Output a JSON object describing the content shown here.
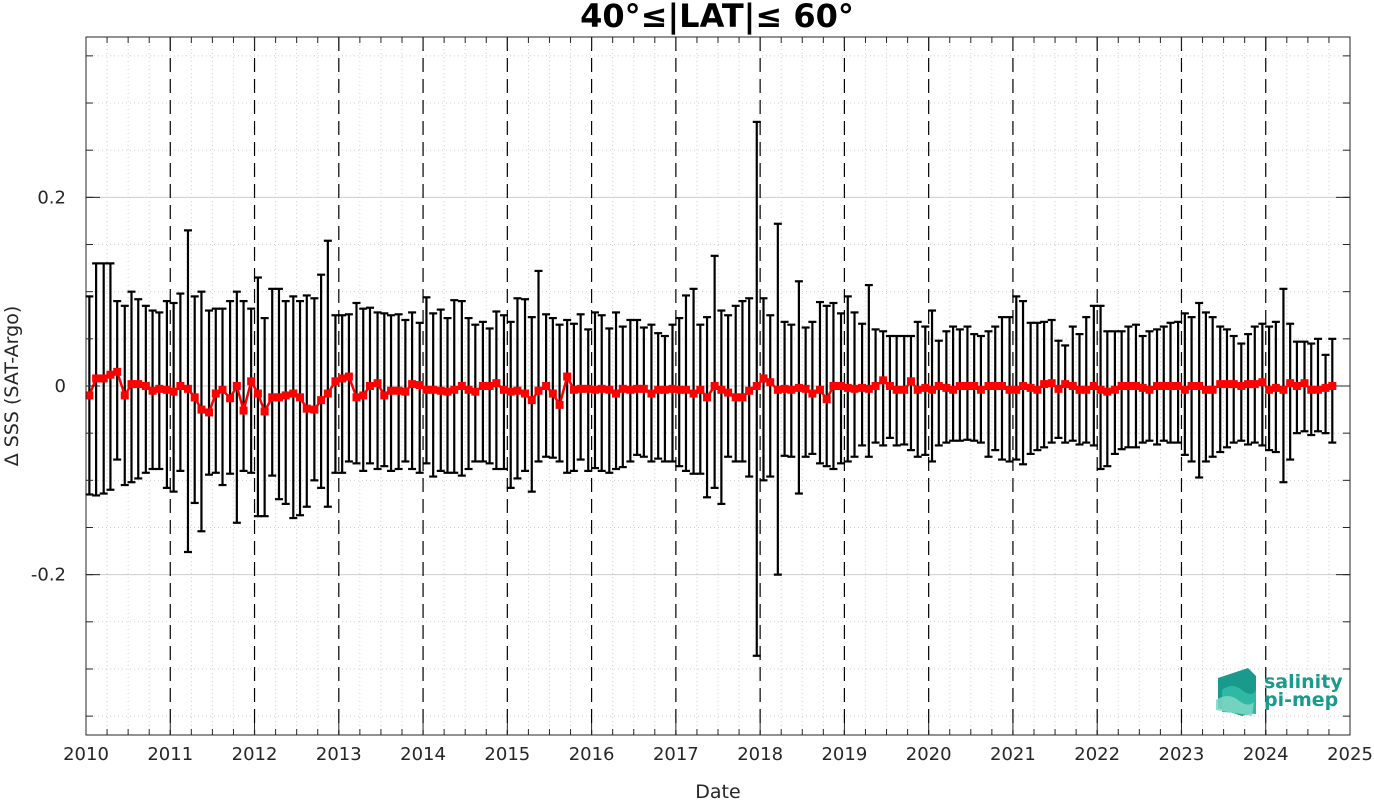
{
  "chart_data": {
    "type": "line",
    "title": "40°≤|LAT|≤ 60°",
    "xlabel": "Date",
    "ylabel": "Δ SSS (SAT-Argo)",
    "xlim": [
      2010,
      2025
    ],
    "ylim": [
      -0.37,
      0.37
    ],
    "x_ticks": [
      "2010",
      "2011",
      "2012",
      "2013",
      "2014",
      "2015",
      "2016",
      "2017",
      "2018",
      "2019",
      "2020",
      "2021",
      "2022",
      "2023",
      "2024",
      "2025"
    ],
    "y_ticks": [
      {
        "value": 0.2,
        "label": "0.2"
      },
      {
        "value": 0,
        "label": "0"
      },
      {
        "value": -0.2,
        "label": "-0.2"
      }
    ],
    "grid": "minor dotted",
    "year_boundary_lines": "dashed",
    "colors": {
      "mean": "#ff0000",
      "error_bars": "#000000",
      "logo": "#1a9a8c"
    },
    "series": [
      {
        "style": "red squares with line (monthly mean) and black error bars (± std)",
        "x": [
          2010.04,
          2010.12,
          2010.21,
          2010.29,
          2010.37,
          2010.46,
          2010.54,
          2010.62,
          2010.71,
          2010.79,
          2010.87,
          2010.96,
          2011.04,
          2011.12,
          2011.21,
          2011.29,
          2011.37,
          2011.46,
          2011.54,
          2011.62,
          2011.71,
          2011.79,
          2011.87,
          2011.96,
          2012.04,
          2012.12,
          2012.21,
          2012.29,
          2012.37,
          2012.46,
          2012.54,
          2012.62,
          2012.71,
          2012.79,
          2012.87,
          2012.96,
          2013.04,
          2013.12,
          2013.21,
          2013.29,
          2013.37,
          2013.46,
          2013.54,
          2013.62,
          2013.71,
          2013.79,
          2013.87,
          2013.96,
          2014.04,
          2014.12,
          2014.21,
          2014.29,
          2014.37,
          2014.46,
          2014.54,
          2014.62,
          2014.71,
          2014.79,
          2014.87,
          2014.96,
          2015.04,
          2015.12,
          2015.21,
          2015.29,
          2015.37,
          2015.46,
          2015.54,
          2015.62,
          2015.71,
          2015.79,
          2015.87,
          2015.96,
          2016.04,
          2016.12,
          2016.21,
          2016.29,
          2016.37,
          2016.46,
          2016.54,
          2016.62,
          2016.71,
          2016.79,
          2016.87,
          2016.96,
          2017.04,
          2017.12,
          2017.21,
          2017.29,
          2017.37,
          2017.46,
          2017.54,
          2017.62,
          2017.71,
          2017.79,
          2017.87,
          2017.96,
          2018.04,
          2018.12,
          2018.21,
          2018.29,
          2018.37,
          2018.46,
          2018.54,
          2018.62,
          2018.71,
          2018.79,
          2018.87,
          2018.96,
          2019.04,
          2019.12,
          2019.21,
          2019.29,
          2019.37,
          2019.46,
          2019.54,
          2019.62,
          2019.71,
          2019.79,
          2019.87,
          2019.96,
          2020.04,
          2020.12,
          2020.21,
          2020.29,
          2020.37,
          2020.46,
          2020.54,
          2020.62,
          2020.71,
          2020.79,
          2020.87,
          2020.96,
          2021.04,
          2021.12,
          2021.21,
          2021.29,
          2021.37,
          2021.46,
          2021.54,
          2021.62,
          2021.71,
          2021.79,
          2021.87,
          2021.96,
          2022.04,
          2022.12,
          2022.21,
          2022.29,
          2022.37,
          2022.46,
          2022.54,
          2022.62,
          2022.71,
          2022.79,
          2022.87,
          2022.96,
          2023.04,
          2023.12,
          2023.21,
          2023.29,
          2023.37,
          2023.46,
          2023.54,
          2023.62,
          2023.71,
          2023.79,
          2023.87,
          2023.96,
          2024.04,
          2024.12,
          2024.21,
          2024.29,
          2024.37,
          2024.46,
          2024.54,
          2024.62,
          2024.71,
          2024.79
        ],
        "mean": [
          -0.01,
          0.008,
          0.008,
          0.012,
          0.015,
          -0.01,
          0.002,
          0.002,
          0.0,
          -0.005,
          -0.003,
          -0.004,
          -0.006,
          0.0,
          -0.003,
          -0.012,
          -0.025,
          -0.028,
          -0.008,
          -0.004,
          -0.013,
          0.0,
          -0.026,
          0.005,
          -0.008,
          -0.027,
          -0.012,
          -0.012,
          -0.01,
          -0.008,
          -0.012,
          -0.024,
          -0.025,
          -0.015,
          -0.008,
          0.005,
          0.008,
          0.01,
          -0.012,
          -0.01,
          0.0,
          0.003,
          -0.01,
          -0.005,
          -0.005,
          -0.006,
          0.002,
          0.001,
          -0.004,
          -0.004,
          -0.005,
          -0.006,
          -0.004,
          0.0,
          -0.004,
          -0.006,
          0.0,
          0.0,
          0.003,
          -0.004,
          -0.006,
          -0.005,
          -0.008,
          -0.015,
          -0.005,
          0.0,
          -0.008,
          -0.02,
          0.01,
          -0.004,
          -0.003,
          -0.003,
          -0.004,
          -0.003,
          -0.004,
          -0.008,
          -0.003,
          -0.004,
          -0.003,
          -0.003,
          -0.008,
          -0.004,
          -0.004,
          -0.003,
          -0.004,
          -0.004,
          -0.008,
          -0.004,
          -0.012,
          0.0,
          -0.004,
          -0.007,
          -0.012,
          -0.012,
          -0.005,
          0.0,
          0.008,
          0.004,
          -0.004,
          -0.003,
          -0.004,
          -0.002,
          -0.003,
          -0.008,
          -0.004,
          -0.014,
          0.0,
          0.0,
          -0.002,
          -0.003,
          -0.002,
          -0.003,
          0.0,
          0.006,
          0.0,
          -0.004,
          -0.004,
          0.005,
          -0.004,
          -0.002,
          -0.004,
          0.0,
          -0.002,
          -0.004,
          0.0,
          0.0,
          0.0,
          -0.004,
          0.0,
          0.0,
          0.0,
          -0.004,
          -0.004,
          0.0,
          -0.002,
          -0.004,
          0.002,
          0.003,
          -0.003,
          0.002,
          0.0,
          -0.004,
          -0.004,
          0.0,
          -0.004,
          -0.006,
          -0.004,
          0.0,
          0.0,
          0.0,
          -0.002,
          -0.004,
          0.0,
          0.0,
          0.0,
          0.0,
          -0.004,
          0.0,
          0.0,
          -0.004,
          -0.004,
          0.002,
          0.002,
          0.002,
          0.0,
          0.002,
          0.002,
          0.004,
          -0.004,
          -0.002,
          -0.004,
          0.003,
          0.0,
          0.003,
          -0.004,
          -0.004,
          -0.002,
          0.0
        ],
        "upper": [
          0.095,
          0.13,
          0.13,
          0.13,
          0.09,
          0.085,
          0.1,
          0.092,
          0.085,
          0.08,
          0.078,
          0.09,
          0.088,
          0.098,
          0.165,
          0.095,
          0.1,
          0.08,
          0.082,
          0.082,
          0.09,
          0.1,
          0.09,
          0.082,
          0.115,
          0.072,
          0.103,
          0.103,
          0.09,
          0.095,
          0.09,
          0.096,
          0.093,
          0.118,
          0.154,
          0.075,
          0.075,
          0.076,
          0.088,
          0.082,
          0.083,
          0.078,
          0.077,
          0.075,
          0.076,
          0.07,
          0.078,
          0.067,
          0.094,
          0.077,
          0.081,
          0.072,
          0.091,
          0.09,
          0.072,
          0.065,
          0.068,
          0.061,
          0.079,
          0.075,
          0.068,
          0.093,
          0.092,
          0.073,
          0.122,
          0.076,
          0.072,
          0.065,
          0.07,
          0.066,
          0.076,
          0.06,
          0.078,
          0.075,
          0.061,
          0.078,
          0.063,
          0.07,
          0.07,
          0.062,
          0.065,
          0.056,
          0.053,
          0.065,
          0.072,
          0.096,
          0.103,
          0.065,
          0.073,
          0.138,
          0.08,
          0.075,
          0.085,
          0.09,
          0.093,
          0.28,
          0.093,
          0.075,
          0.172,
          0.068,
          0.065,
          0.111,
          0.062,
          0.068,
          0.089,
          0.085,
          0.088,
          0.077,
          0.095,
          0.078,
          0.066,
          0.107,
          0.06,
          0.058,
          0.053,
          0.053,
          0.053,
          0.053,
          0.068,
          0.063,
          0.08,
          0.048,
          0.058,
          0.063,
          0.06,
          0.063,
          0.055,
          0.053,
          0.058,
          0.063,
          0.073,
          0.073,
          0.095,
          0.09,
          0.067,
          0.067,
          0.068,
          0.07,
          0.048,
          0.043,
          0.063,
          0.055,
          0.073,
          0.085,
          0.085,
          0.058,
          0.058,
          0.058,
          0.063,
          0.065,
          0.053,
          0.058,
          0.06,
          0.063,
          0.067,
          0.068,
          0.077,
          0.073,
          0.088,
          0.078,
          0.073,
          0.063,
          0.06,
          0.053,
          0.045,
          0.055,
          0.063,
          0.066,
          0.063,
          0.068,
          0.103,
          0.066,
          0.047,
          0.047,
          0.045,
          0.05,
          0.033,
          0.05
        ],
        "lower": [
          -0.115,
          -0.116,
          -0.114,
          -0.11,
          -0.078,
          -0.105,
          -0.102,
          -0.098,
          -0.092,
          -0.088,
          -0.088,
          -0.108,
          -0.112,
          -0.09,
          -0.176,
          -0.124,
          -0.154,
          -0.094,
          -0.092,
          -0.105,
          -0.093,
          -0.145,
          -0.09,
          -0.092,
          -0.138,
          -0.138,
          -0.095,
          -0.12,
          -0.125,
          -0.14,
          -0.137,
          -0.128,
          -0.1,
          -0.108,
          -0.128,
          -0.092,
          -0.092,
          -0.08,
          -0.082,
          -0.09,
          -0.082,
          -0.088,
          -0.085,
          -0.09,
          -0.088,
          -0.08,
          -0.088,
          -0.092,
          -0.082,
          -0.096,
          -0.09,
          -0.092,
          -0.092,
          -0.095,
          -0.088,
          -0.08,
          -0.08,
          -0.082,
          -0.088,
          -0.088,
          -0.108,
          -0.098,
          -0.09,
          -0.112,
          -0.08,
          -0.075,
          -0.076,
          -0.08,
          -0.092,
          -0.09,
          -0.078,
          -0.09,
          -0.087,
          -0.09,
          -0.092,
          -0.088,
          -0.086,
          -0.08,
          -0.073,
          -0.075,
          -0.08,
          -0.077,
          -0.08,
          -0.08,
          -0.085,
          -0.09,
          -0.093,
          -0.093,
          -0.118,
          -0.108,
          -0.125,
          -0.075,
          -0.08,
          -0.08,
          -0.096,
          -0.286,
          -0.1,
          -0.096,
          -0.2,
          -0.074,
          -0.075,
          -0.114,
          -0.075,
          -0.072,
          -0.082,
          -0.085,
          -0.088,
          -0.082,
          -0.08,
          -0.075,
          -0.063,
          -0.075,
          -0.06,
          -0.063,
          -0.055,
          -0.063,
          -0.062,
          -0.068,
          -0.075,
          -0.073,
          -0.08,
          -0.063,
          -0.06,
          -0.058,
          -0.058,
          -0.057,
          -0.058,
          -0.06,
          -0.075,
          -0.068,
          -0.078,
          -0.08,
          -0.078,
          -0.083,
          -0.072,
          -0.068,
          -0.065,
          -0.06,
          -0.055,
          -0.06,
          -0.058,
          -0.062,
          -0.06,
          -0.063,
          -0.088,
          -0.085,
          -0.072,
          -0.067,
          -0.065,
          -0.065,
          -0.06,
          -0.058,
          -0.062,
          -0.058,
          -0.06,
          -0.06,
          -0.073,
          -0.08,
          -0.097,
          -0.08,
          -0.075,
          -0.07,
          -0.065,
          -0.06,
          -0.058,
          -0.062,
          -0.06,
          -0.063,
          -0.068,
          -0.07,
          -0.102,
          -0.078,
          -0.05,
          -0.048,
          -0.052,
          -0.048,
          -0.05,
          -0.06
        ]
      }
    ]
  },
  "logo": {
    "line1": "salinity",
    "line2": "pi-mep"
  }
}
